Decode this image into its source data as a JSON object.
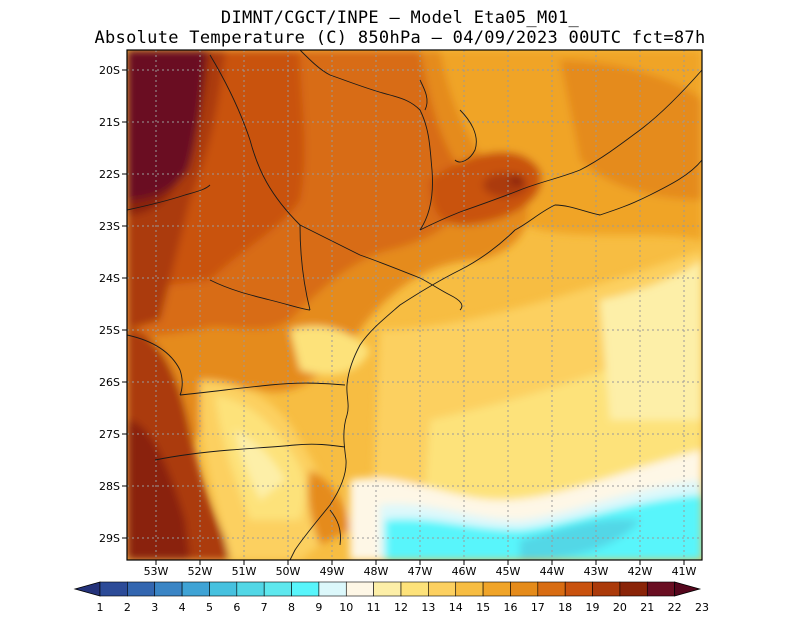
{
  "header": {
    "line1": "DIMNT/CGCT/INPE —  Model Eta05_M01_",
    "line2": "Absolute Temperature (C) 850hPa —  04/09/2023 00UTC fct=87h"
  },
  "map": {
    "lat_labels": [
      "20S",
      "21S",
      "22S",
      "23S",
      "24S",
      "25S",
      "26S",
      "27S",
      "28S",
      "29S"
    ],
    "lon_labels": [
      "53W",
      "52W",
      "51W",
      "50W",
      "49W",
      "48W",
      "47W",
      "46W",
      "45W",
      "44W",
      "43W",
      "42W",
      "41W"
    ]
  },
  "colorbar": {
    "labels": [
      "1",
      "2",
      "3",
      "4",
      "5",
      "6",
      "7",
      "8",
      "9",
      "10",
      "11",
      "12",
      "13",
      "14",
      "15",
      "16",
      "17",
      "18",
      "19",
      "20",
      "21",
      "22",
      "23"
    ],
    "colors": [
      "#24327a",
      "#2c4b98",
      "#3366b0",
      "#3a85c5",
      "#3fa3d5",
      "#46c1df",
      "#52d7e6",
      "#5ee8ee",
      "#58f5fb",
      "#dcf8fb",
      "#fef7e6",
      "#fdefa8",
      "#fde27a",
      "#fcd060",
      "#f7bd42",
      "#f0a428",
      "#e58b1a",
      "#d86c12",
      "#c9520e",
      "#ab3a0a",
      "#8a2408",
      "#6a0e22",
      "#55061d"
    ]
  }
}
